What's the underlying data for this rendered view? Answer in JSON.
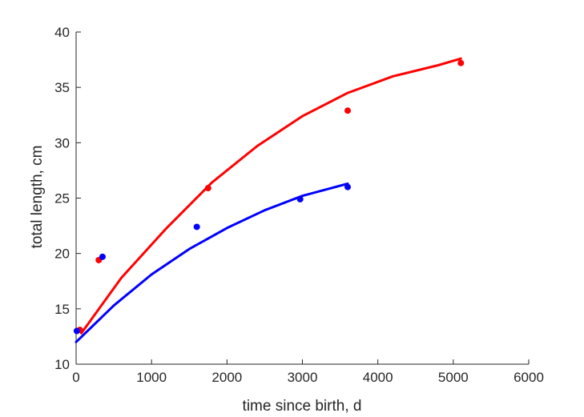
{
  "chart_data": {
    "type": "scatter",
    "title": "",
    "xlabel": "time since birth, d",
    "ylabel": "total length, cm",
    "xlim": [
      0,
      6000
    ],
    "ylim": [
      10,
      40
    ],
    "xticks": [
      0,
      1000,
      2000,
      3000,
      4000,
      5000,
      6000
    ],
    "yticks": [
      10,
      15,
      20,
      25,
      30,
      35,
      40
    ],
    "grid": false,
    "legend": "none",
    "series": [
      {
        "color": "#ff0000",
        "points": [
          {
            "x": 50,
            "y": 13.1
          },
          {
            "x": 300,
            "y": 19.4
          },
          {
            "x": 1750,
            "y": 25.9
          },
          {
            "x": 3600,
            "y": 32.9
          },
          {
            "x": 5100,
            "y": 37.2
          }
        ],
        "fit": {
          "x": [
            70,
            600,
            1200,
            1800,
            2400,
            3000,
            3600,
            4200,
            4800,
            5100
          ],
          "y": [
            12.8,
            17.8,
            22.3,
            26.4,
            29.7,
            32.4,
            34.5,
            36.0,
            37.0,
            37.6
          ]
        }
      },
      {
        "color": "#0000ff",
        "points": [
          {
            "x": 10,
            "y": 13.0
          },
          {
            "x": 350,
            "y": 19.7
          },
          {
            "x": 1600,
            "y": 22.4
          },
          {
            "x": 2970,
            "y": 24.9
          },
          {
            "x": 3600,
            "y": 26.0
          }
        ],
        "fit": {
          "x": [
            0,
            500,
            1000,
            1500,
            2000,
            2500,
            3000,
            3600
          ],
          "y": [
            12.0,
            15.3,
            18.1,
            20.4,
            22.3,
            23.9,
            25.2,
            26.3
          ]
        }
      }
    ]
  }
}
